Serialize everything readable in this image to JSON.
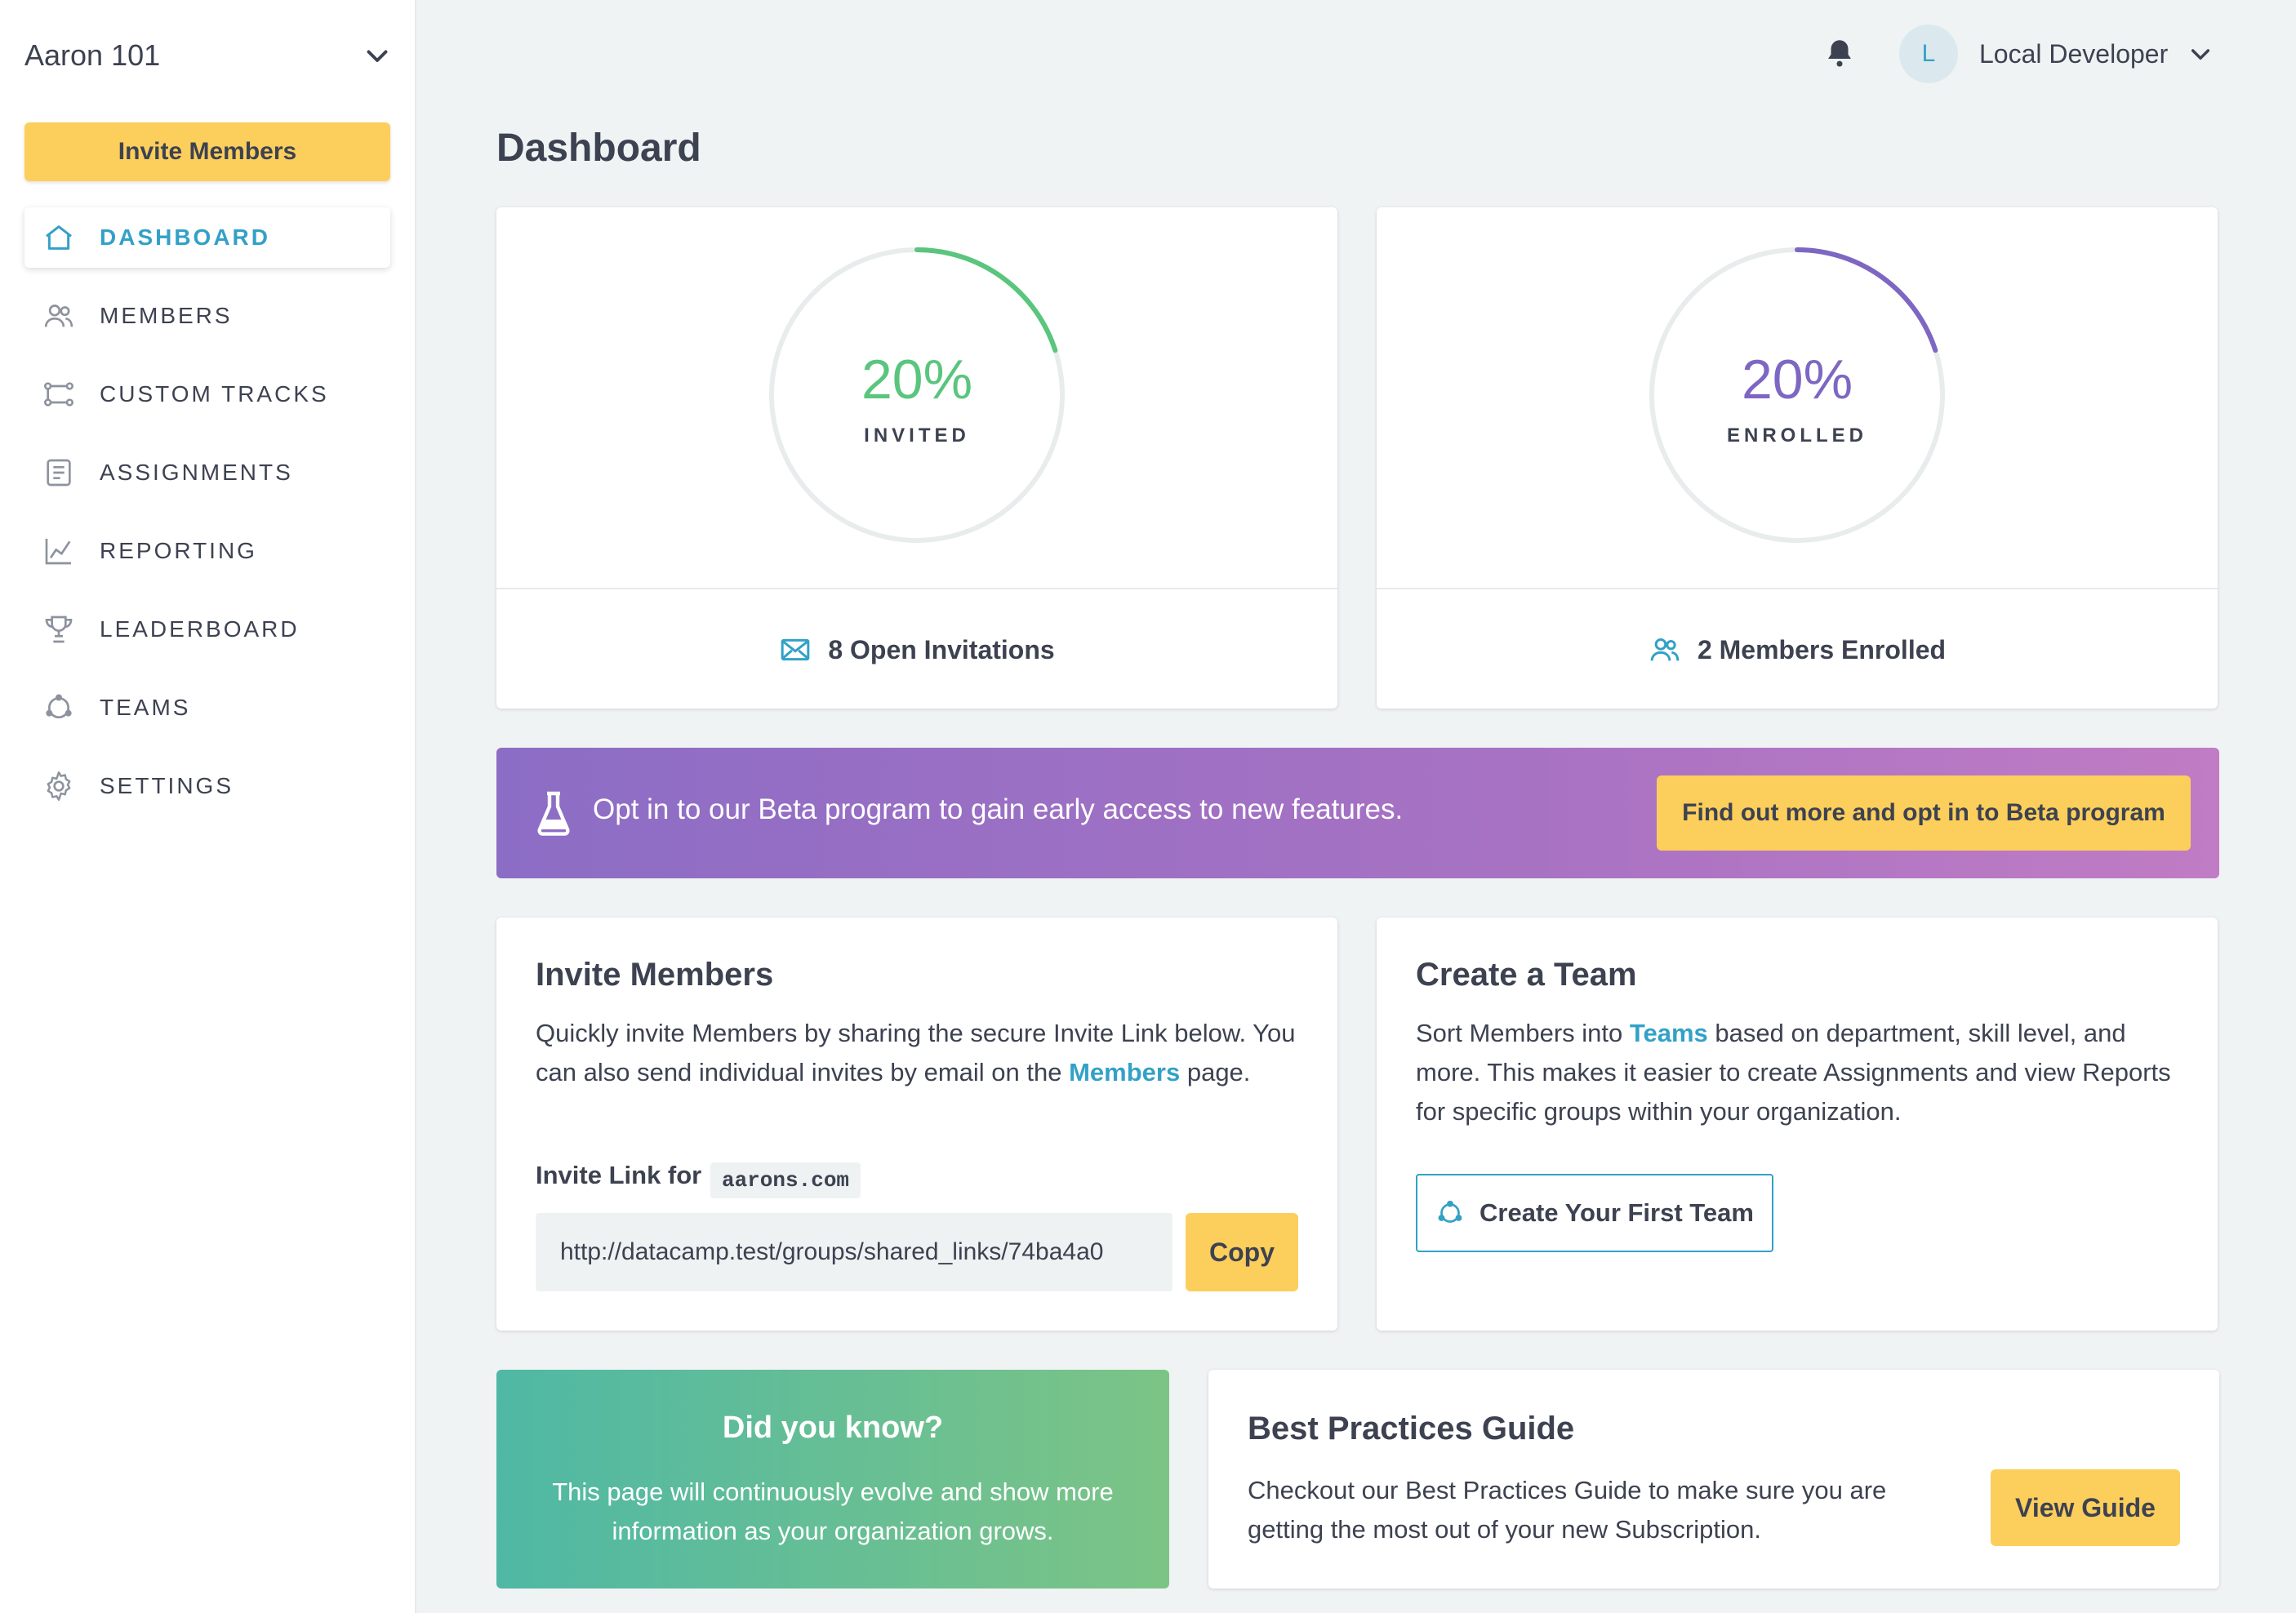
{
  "sidebar": {
    "org_name": "Aaron 101",
    "invite_label": "Invite Members",
    "items": [
      {
        "label": "DASHBOARD",
        "icon": "home-icon",
        "active": true
      },
      {
        "label": "MEMBERS",
        "icon": "members-icon"
      },
      {
        "label": "CUSTOM TRACKS",
        "icon": "custom-tracks-icon"
      },
      {
        "label": "ASSIGNMENTS",
        "icon": "assignments-icon"
      },
      {
        "label": "REPORTING",
        "icon": "reporting-icon"
      },
      {
        "label": "LEADERBOARD",
        "icon": "trophy-icon"
      },
      {
        "label": "TEAMS",
        "icon": "teams-icon"
      },
      {
        "label": "SETTINGS",
        "icon": "gear-icon"
      }
    ]
  },
  "header": {
    "avatar_initial": "L",
    "user_name": "Local Developer"
  },
  "page": {
    "title": "Dashboard"
  },
  "stats": {
    "invited": {
      "value": "20%",
      "fraction": 0.2,
      "label": "INVITED",
      "footer": "8 Open Invitations",
      "color": "#5ac57d"
    },
    "enrolled": {
      "value": "20%",
      "fraction": 0.2,
      "label": "ENROLLED",
      "footer": "2 Members Enrolled",
      "color": "#7e67c2"
    }
  },
  "beta": {
    "text": "Opt in to our Beta program to gain early access to new features.",
    "button": "Find out more and opt in to Beta program"
  },
  "invite_card": {
    "title": "Invite Members",
    "body_1": "Quickly invite Members by sharing the secure Invite Link below. You can also send individual invites by email on the ",
    "body_link": "Members",
    "body_2": " page.",
    "link_label": "Invite Link for",
    "domain": "aarons.com",
    "link_value": "http://datacamp.test/groups/shared_links/74ba4a0",
    "copy": "Copy"
  },
  "team_card": {
    "title": "Create a Team",
    "body_1": "Sort Members into ",
    "body_link": "Teams",
    "body_2": " based on department, skill level, and more. This makes it easier to create Assignments and view Reports for specific groups within your organization.",
    "button": "Create Your First Team"
  },
  "tip_card": {
    "title": "Did you know?",
    "body": "This page will continuously evolve and show more information as your organization grows."
  },
  "guide_card": {
    "title": "Best Practices Guide",
    "body": "Checkout our Best Practices Guide to make sure you are getting the most out of your new Subscription.",
    "button": "View Guide"
  },
  "colors": {
    "accent": "#33a1c7",
    "button_yellow": "#fcce5b",
    "text": "#3d4251"
  }
}
